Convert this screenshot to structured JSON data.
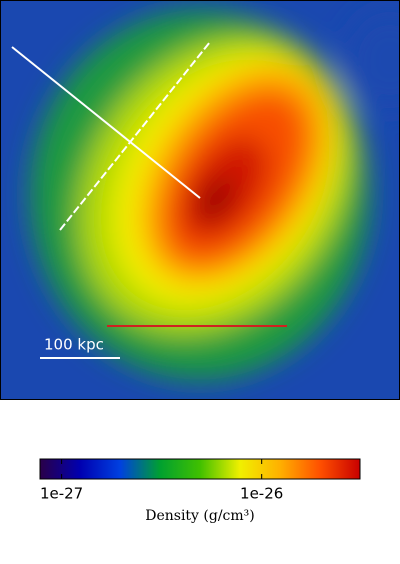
{
  "chart_data": {
    "type": "colorbar",
    "scale_bar_label": "100 kpc",
    "colorbar_label": "Density (g/cm³)",
    "log_scale": true,
    "clim": [
      7.8e-28,
      3.1e-26
    ],
    "cticks": [
      {
        "value": 1e-27,
        "label": "1e-27"
      },
      {
        "value": 1e-26,
        "label": "1e-26"
      }
    ],
    "colormap": [
      "#2a0048",
      "#0000b0",
      "#0040e0",
      "#00a030",
      "#40c000",
      "#f0f000",
      "#ffb000",
      "#ff5000",
      "#c80000"
    ]
  }
}
